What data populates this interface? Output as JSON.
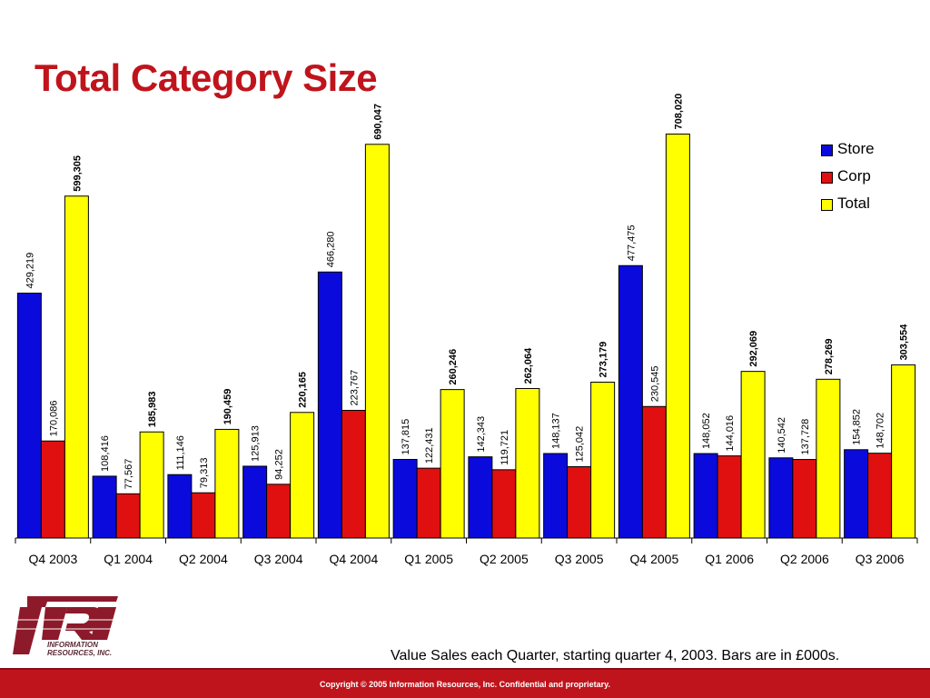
{
  "slide": {
    "title": "Total Category Size",
    "caption": "Value Sales each Quarter, starting quarter 4, 2003. Bars are in £000s.",
    "copyright": "Copyright © 2005 Information Resources, Inc. Confidential and proprietary.",
    "logo": {
      "mark": "IRI",
      "tagline": "INFORMATION RESOURCES, INC."
    },
    "colors": {
      "title": "#c0141c",
      "footer": "#c0141c",
      "logo": "#8c1a2a"
    }
  },
  "chart_data": {
    "type": "bar",
    "title": "",
    "xlabel": "",
    "ylabel": "",
    "ylim": [
      0,
      720000
    ],
    "grid": false,
    "legend_position": "top-right",
    "categories": [
      "Q4 2003",
      "Q1 2004",
      "Q2 2004",
      "Q3 2004",
      "Q4 2004",
      "Q1 2005",
      "Q2 2005",
      "Q3 2005",
      "Q4 2005",
      "Q1 2006",
      "Q2 2006",
      "Q3 2006"
    ],
    "series": [
      {
        "name": "Store",
        "color": "#0a0adc",
        "bold_labels": false,
        "values": [
          429219,
          108416,
          111146,
          125913,
          466280,
          137815,
          142343,
          148137,
          477475,
          148052,
          140542,
          154852
        ],
        "labels": [
          "429,219",
          "108,416",
          "111,146",
          "125,913",
          "466,280",
          "137,815",
          "142,343",
          "148,137",
          "477,475",
          "148,052",
          "140,542",
          "154,852"
        ]
      },
      {
        "name": "Corp",
        "color": "#e01010",
        "bold_labels": false,
        "values": [
          170086,
          77567,
          79313,
          94252,
          223767,
          122431,
          119721,
          125042,
          230545,
          144016,
          137728,
          148702
        ],
        "labels": [
          "170,086",
          "77,567",
          "79,313",
          "94,252",
          "223,767",
          "122,431",
          "119,721",
          "125,042",
          "230,545",
          "144,016",
          "137,728",
          "148,702"
        ]
      },
      {
        "name": "Total",
        "color": "#ffff00",
        "bold_labels": true,
        "values": [
          599305,
          185983,
          190459,
          220165,
          690047,
          260246,
          262064,
          273179,
          708020,
          292069,
          278269,
          303554
        ],
        "labels": [
          "599,305",
          "185,983",
          "190,459",
          "220,165",
          "690,047",
          "260,246",
          "262,064",
          "273,179",
          "708,020",
          "292,069",
          "278,269",
          "303,554"
        ]
      }
    ]
  }
}
